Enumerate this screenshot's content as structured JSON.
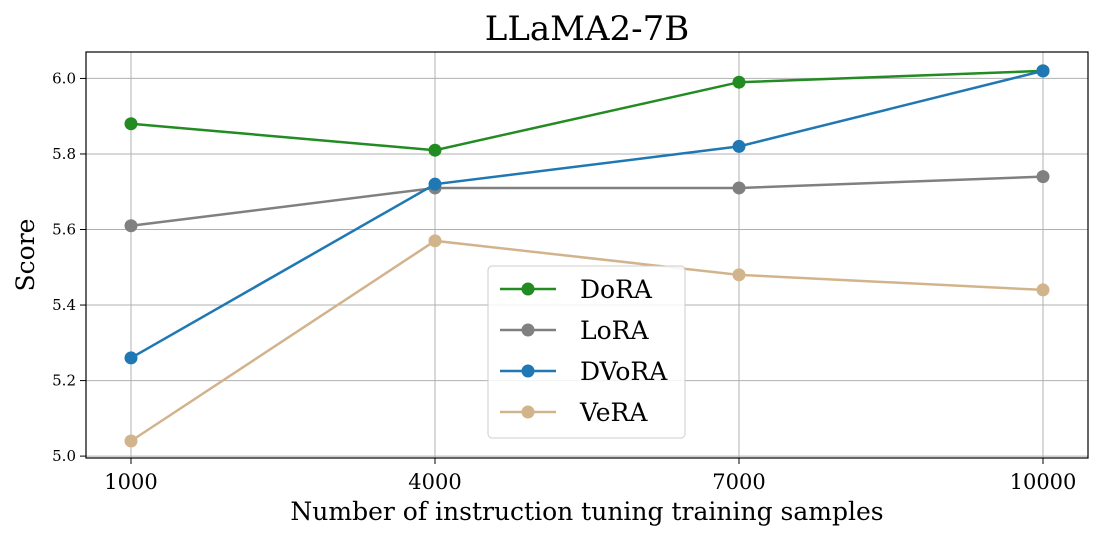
{
  "chart_data": {
    "type": "line",
    "title": "LLaMA2-7B",
    "xlabel": "Number of instruction tuning training samples",
    "ylabel": "Score",
    "x": [
      1000,
      4000,
      7000,
      10000
    ],
    "x_tick_labels": [
      "1000",
      "4000",
      "7000",
      "10000"
    ],
    "y_ticks": [
      5.0,
      5.2,
      5.4,
      5.6,
      5.8,
      6.0
    ],
    "y_tick_labels": [
      "5.0",
      "5.2",
      "5.4",
      "5.6",
      "5.8",
      "6.0"
    ],
    "ylim": [
      4.995,
      6.07
    ],
    "grid": true,
    "legend_position": "lower-center",
    "series": [
      {
        "name": "DoRA",
        "color": "#228b22",
        "values": [
          5.88,
          5.81,
          5.99,
          6.02
        ]
      },
      {
        "name": "LoRA",
        "color": "#808080",
        "values": [
          5.61,
          5.71,
          5.71,
          5.74
        ]
      },
      {
        "name": "DVoRA",
        "color": "#1f77b4",
        "values": [
          5.26,
          5.72,
          5.82,
          6.02
        ]
      },
      {
        "name": "VeRA",
        "color": "#d2b48c",
        "values": [
          5.04,
          5.57,
          5.48,
          5.44
        ]
      }
    ]
  }
}
